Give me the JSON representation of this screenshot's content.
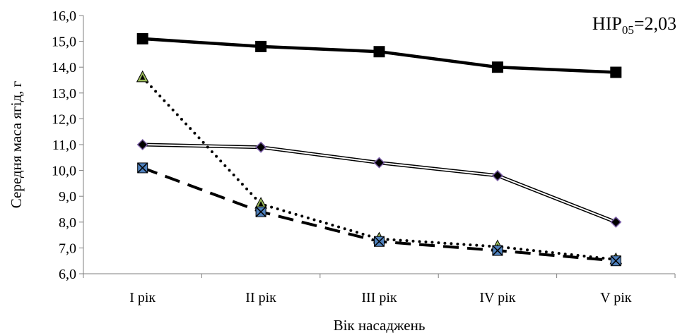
{
  "chart_data": {
    "type": "line",
    "title": "",
    "xlabel": "Вік насаджень",
    "ylabel": "Середня маса ягід, г",
    "ylim": [
      6.0,
      16.0
    ],
    "y_ticks": [
      "6,0",
      "7,0",
      "8,0",
      "9,0",
      "10,0",
      "11,0",
      "12,0",
      "13,0",
      "14,0",
      "15,0",
      "16,0"
    ],
    "grid": false,
    "categories": [
      "I рік",
      "II рік",
      "III рік",
      "IV рік",
      "V рік"
    ],
    "series": [
      {
        "values": [
          15.1,
          14.8,
          14.6,
          14.0,
          13.8
        ],
        "color": "#000000",
        "marker": "square",
        "line": "solid-thick"
      },
      {
        "values": [
          11.0,
          10.9,
          10.3,
          9.8,
          8.0
        ],
        "color": "#000000",
        "marker": "diamond",
        "marker_color": "#7b5ea7",
        "line": "double"
      },
      {
        "values": [
          13.6,
          8.7,
          7.35,
          7.05,
          6.55
        ],
        "color": "#000000",
        "marker": "triangle",
        "marker_color": "#9bbb59",
        "line": "dotted"
      },
      {
        "values": [
          10.1,
          8.4,
          7.25,
          6.9,
          6.5
        ],
        "color": "#000000",
        "marker": "x-square",
        "marker_color": "#4f81bd",
        "line": "dashed"
      }
    ],
    "annotation": {
      "prefix": "НІР",
      "sub": "05",
      "suffix": "=2,03"
    }
  }
}
